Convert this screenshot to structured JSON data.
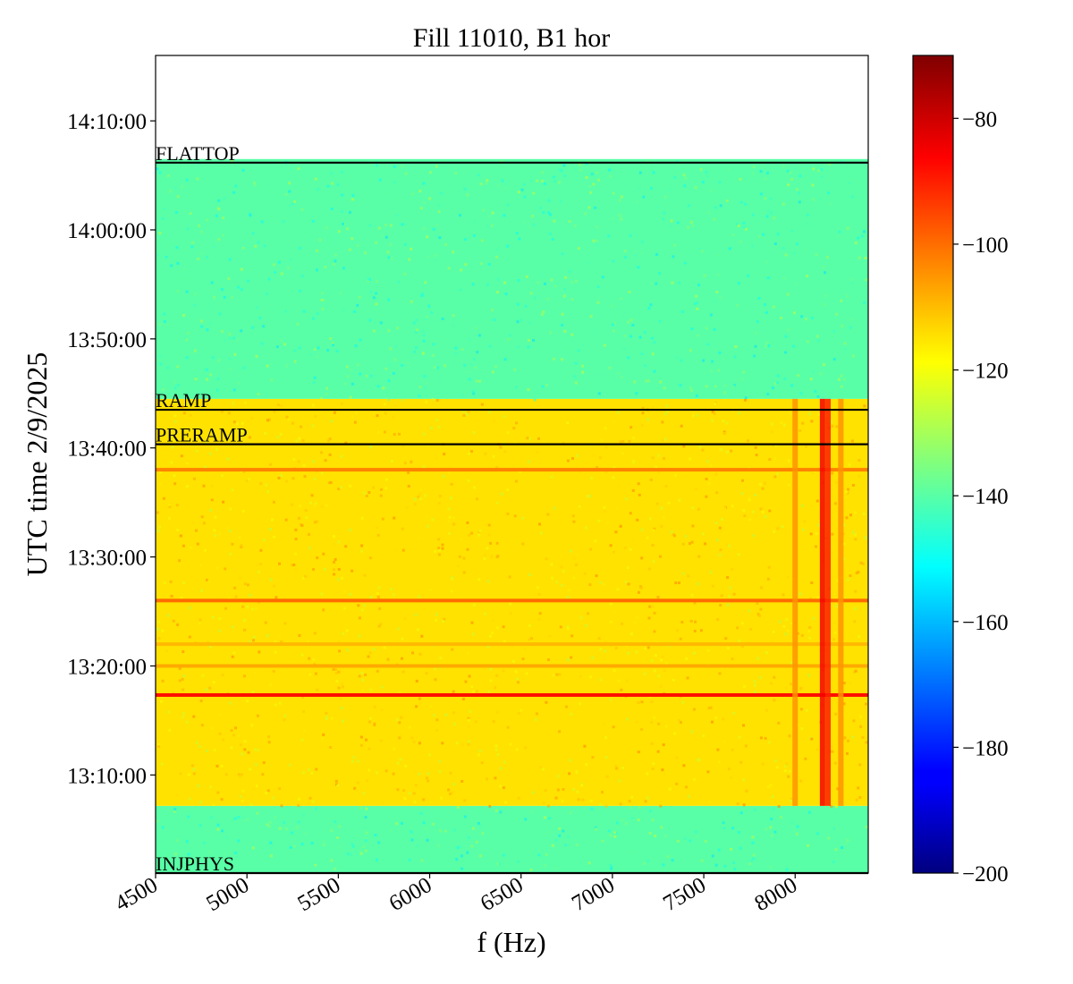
{
  "chart_data": {
    "type": "heatmap",
    "title": "Fill 11010, B1 hor",
    "xlabel": "f (Hz)",
    "ylabel": "UTC time 2/9/2025",
    "xlim": [
      4500,
      8400
    ],
    "ylim": [
      "13:01:00",
      "14:16:00"
    ],
    "x_ticks": [
      4500,
      5000,
      5500,
      6000,
      6500,
      7000,
      7500,
      8000
    ],
    "x_tick_labels": [
      "4500",
      "5000",
      "5500",
      "6000",
      "6500",
      "7000",
      "7500",
      "8000"
    ],
    "y_ticks": [
      "13:10:00",
      "13:20:00",
      "13:30:00",
      "13:40:00",
      "13:50:00",
      "14:00:00",
      "14:10:00"
    ],
    "colormap": "jet",
    "colorbar": {
      "range": [
        -200,
        -70
      ],
      "ticks": [
        -200,
        -180,
        -160,
        -140,
        -120,
        -100,
        -80
      ],
      "tick_labels": [
        "−200",
        "−180",
        "−160",
        "−140",
        "−120",
        "−100",
        "−80"
      ]
    },
    "data_extent": {
      "t_start": "13:01:00",
      "t_end": "14:06:30"
    },
    "regions": [
      {
        "t_start": "13:01:00",
        "t_end": "13:07:10",
        "level_dB": -140
      },
      {
        "t_start": "13:07:10",
        "t_end": "13:44:30",
        "level_dB": -115
      },
      {
        "t_start": "13:44:30",
        "t_end": "14:06:30",
        "level_dB": -140
      }
    ],
    "hot_lines_time": [
      {
        "t": "13:17:20",
        "level_dB": -88
      },
      {
        "t": "13:26:00",
        "level_dB": -100
      },
      {
        "t": "13:38:00",
        "level_dB": -103
      },
      {
        "t": "13:20:00",
        "level_dB": -108
      },
      {
        "t": "13:22:00",
        "level_dB": -110
      }
    ],
    "hot_lines_freq": [
      {
        "f": 8150,
        "t_start": "13:07:10",
        "t_end": "13:44:30",
        "level_dB": -85
      },
      {
        "f": 8180,
        "t_start": "13:07:10",
        "t_end": "13:44:30",
        "level_dB": -90
      },
      {
        "f": 8000,
        "t_start": "13:07:10",
        "t_end": "13:44:30",
        "level_dB": -105
      },
      {
        "f": 8250,
        "t_start": "13:07:10",
        "t_end": "13:44:30",
        "level_dB": -105
      }
    ],
    "event_markers": [
      {
        "label": "FLATTOP",
        "t": "14:06:10"
      },
      {
        "label": "RAMP",
        "t": "13:43:30"
      },
      {
        "label": "PRERAMP",
        "t": "13:40:20"
      },
      {
        "label": "INJPHYS",
        "t": "13:01:00"
      }
    ]
  }
}
